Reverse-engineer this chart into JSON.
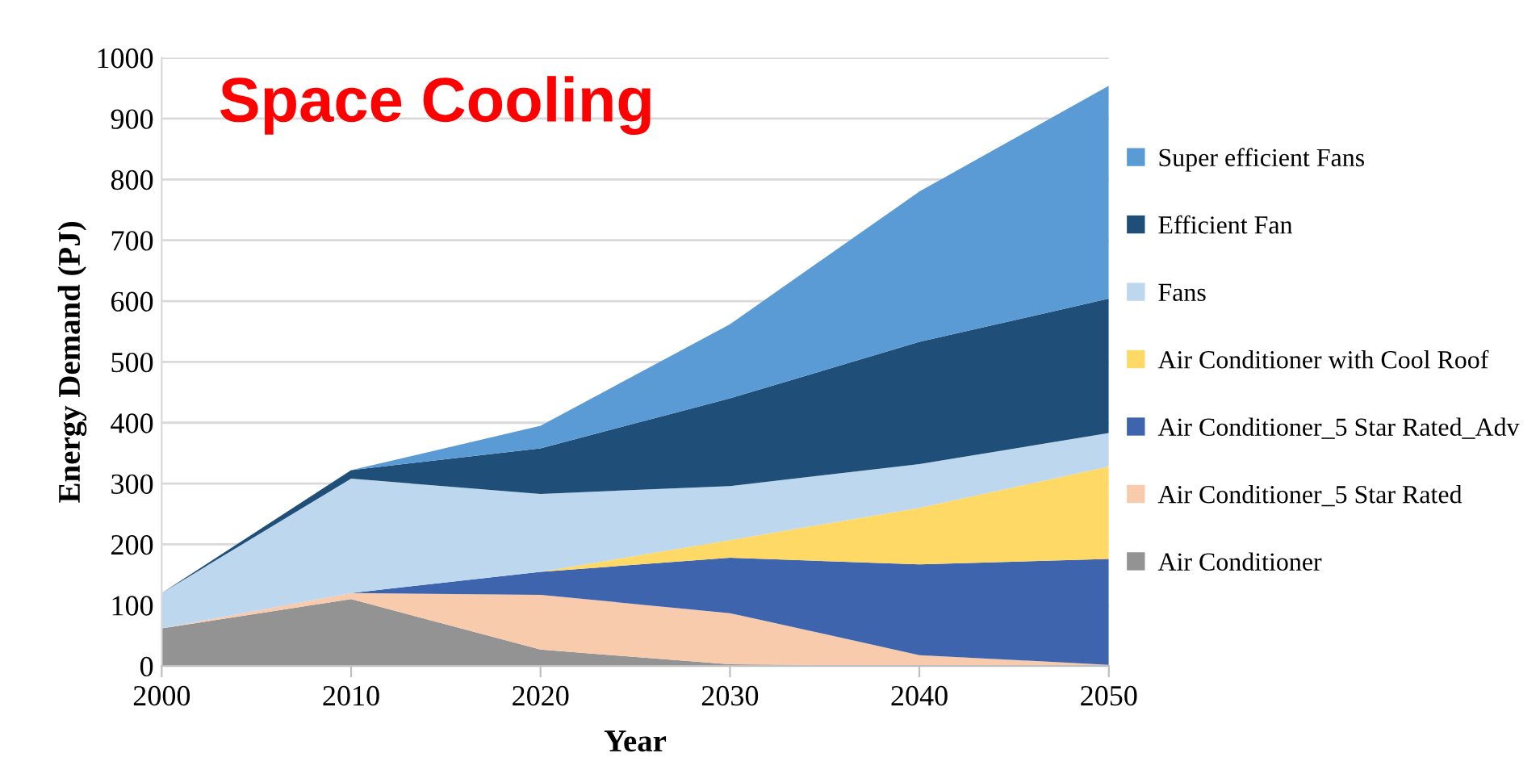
{
  "chart_data": {
    "type": "area",
    "stacked": true,
    "title": "Space Cooling",
    "xlabel": "Year",
    "ylabel": "Energy Demand (PJ)",
    "x": [
      2000,
      2010,
      2020,
      2030,
      2040,
      2050
    ],
    "series": [
      {
        "name": "Air Conditioner",
        "color": "#939393",
        "values": [
          62,
          110,
          27,
          3,
          0,
          0
        ]
      },
      {
        "name": "Air Conditioner_5 Star Rated",
        "color": "#f8cbad",
        "values": [
          0,
          10,
          90,
          84,
          18,
          2
        ]
      },
      {
        "name": "Air Conditioner_5 Star Rated_Adv",
        "color": "#3d64ad",
        "values": [
          0,
          0,
          38,
          91,
          149,
          174
        ]
      },
      {
        "name": "Air Conditioner with Cool Roof",
        "color": "#ffd966",
        "values": [
          0,
          0,
          0,
          29,
          93,
          152
        ]
      },
      {
        "name": "Fans",
        "color": "#bdd7ee",
        "values": [
          58,
          188,
          128,
          89,
          72,
          55
        ]
      },
      {
        "name": "Efficient Fan",
        "color": "#1f4e79",
        "values": [
          0,
          14,
          75,
          144,
          201,
          221
        ]
      },
      {
        "name": "Super efficient Fans",
        "color": "#5b9bd5",
        "values": [
          0,
          0,
          37,
          122,
          247,
          350
        ]
      }
    ],
    "xlim": [
      2000,
      2050
    ],
    "xticks": [
      2000,
      2010,
      2020,
      2030,
      2040,
      2050
    ],
    "ylim": [
      0,
      1000
    ],
    "yticks": [
      0,
      100,
      200,
      300,
      400,
      500,
      600,
      700,
      800,
      900,
      1000
    ],
    "grid": "y",
    "legend": "right"
  }
}
